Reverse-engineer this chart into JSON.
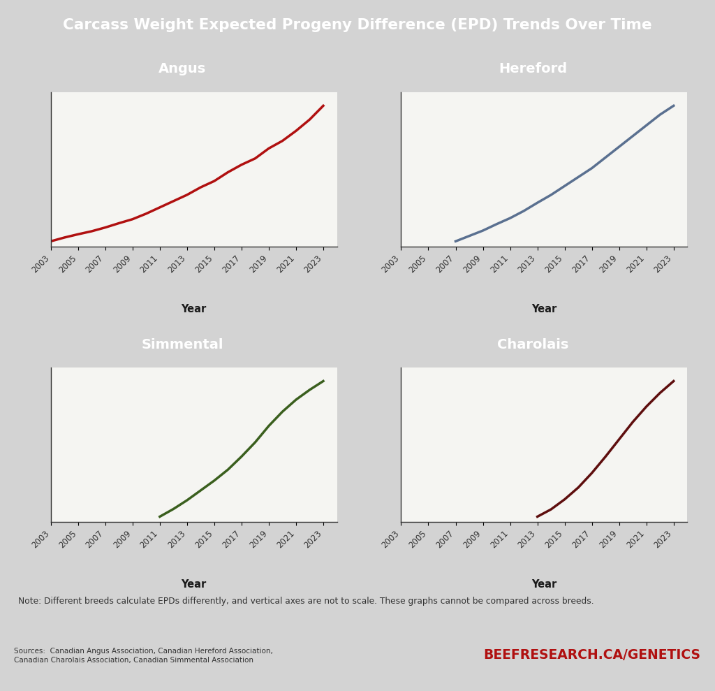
{
  "title": "Carcass Weight Expected Progeny Difference (EPD) Trends Over Time",
  "title_bg": "#3d4a5a",
  "title_color": "#ffffff",
  "background_color": "#d3d3d3",
  "plot_bg": "#f5f5f2",
  "note": "Note: Different breeds calculate EPDs differently, and vertical axes are not to scale. These graphs cannot be compared across breeds.",
  "sources": "Sources:  Canadian Angus Association, Canadian Hereford Association,\nCanadian Charolais Association, Canadian Simmental Association",
  "website": "BEEFRESEARCH.CA/GENETICS",
  "footer_bg": "#bdbdbd",
  "breeds": [
    "Angus",
    "Hereford",
    "Simmental",
    "Charolais"
  ],
  "breed_colors": [
    "#b01010",
    "#5a7090",
    "#3a5f1e",
    "#5e0e0e"
  ],
  "breed_header_colors": [
    "#b01818",
    "#607890",
    "#4a6820",
    "#6b1010"
  ],
  "angus_years": [
    2003,
    2004,
    2005,
    2006,
    2007,
    2008,
    2009,
    2010,
    2011,
    2012,
    2013,
    2014,
    2015,
    2016,
    2017,
    2018,
    2019,
    2020,
    2021,
    2022,
    2023
  ],
  "angus_values": [
    1.0,
    2.5,
    3.8,
    5.0,
    6.5,
    8.2,
    9.8,
    12.0,
    14.5,
    17.0,
    19.5,
    22.5,
    25.0,
    28.5,
    31.5,
    34.0,
    38.0,
    41.0,
    45.0,
    49.5,
    55.0
  ],
  "hereford_years": [
    2003,
    2004,
    2005,
    2006,
    2007,
    2008,
    2009,
    2010,
    2011,
    2012,
    2013,
    2014,
    2015,
    2016,
    2017,
    2018,
    2019,
    2020,
    2021,
    2022,
    2023
  ],
  "hereford_values": [
    null,
    null,
    null,
    null,
    5.0,
    6.5,
    8.0,
    9.8,
    11.5,
    13.5,
    15.8,
    18.0,
    20.5,
    23.0,
    25.5,
    28.5,
    31.5,
    34.5,
    37.5,
    40.5,
    43.0
  ],
  "simmental_years": [
    2003,
    2004,
    2005,
    2006,
    2007,
    2008,
    2009,
    2010,
    2011,
    2012,
    2013,
    2014,
    2015,
    2016,
    2017,
    2018,
    2019,
    2020,
    2021,
    2022,
    2023
  ],
  "simmental_values": [
    null,
    null,
    null,
    null,
    null,
    null,
    null,
    null,
    2.0,
    5.5,
    9.5,
    14.0,
    18.5,
    23.5,
    29.5,
    36.0,
    43.5,
    50.0,
    55.5,
    60.0,
    64.0
  ],
  "charolais_years": [
    2003,
    2004,
    2005,
    2006,
    2007,
    2008,
    2009,
    2010,
    2011,
    2012,
    2013,
    2014,
    2015,
    2016,
    2017,
    2018,
    2019,
    2020,
    2021,
    2022,
    2023
  ],
  "charolais_values": [
    null,
    null,
    null,
    null,
    null,
    null,
    null,
    null,
    null,
    null,
    1.0,
    5.0,
    10.5,
    17.0,
    25.0,
    34.0,
    43.5,
    53.0,
    61.5,
    69.0,
    75.5
  ]
}
